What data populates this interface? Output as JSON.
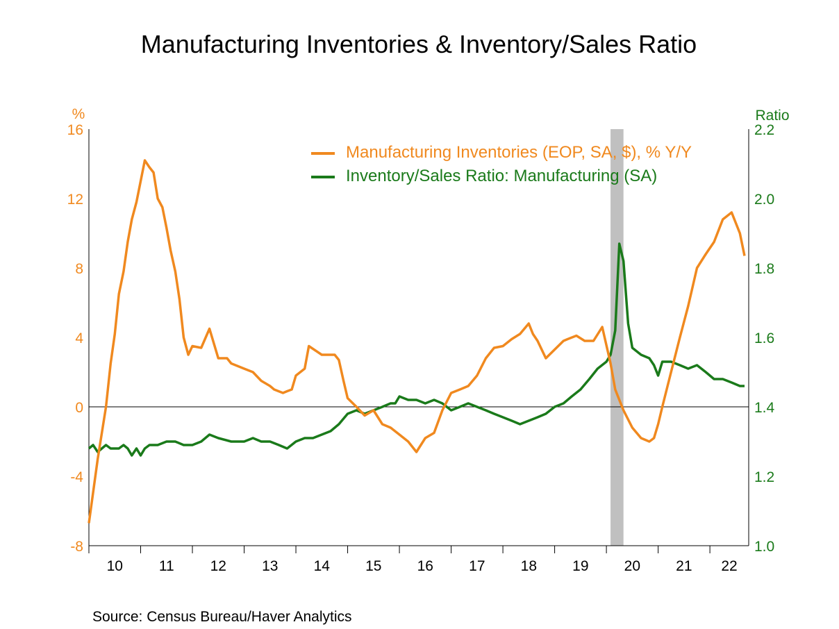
{
  "chart_data": {
    "type": "line",
    "title": "Manufacturing Inventories & Inventory/Sales Ratio",
    "source": "Source:  Census Bureau/Haver Analytics",
    "left_axis": {
      "unit_label": "%",
      "range": [
        -8,
        16
      ],
      "ticks": [
        "16",
        "12",
        "8",
        "4",
        "0",
        "-4",
        "-8"
      ],
      "tick_values": [
        16,
        12,
        8,
        4,
        0,
        -4,
        -8
      ]
    },
    "right_axis": {
      "unit_label": "Ratio",
      "range": [
        1.0,
        2.2
      ],
      "ticks": [
        "2.2",
        "2.0",
        "1.8",
        "1.6",
        "1.4",
        "1.2",
        "1.0"
      ],
      "tick_values": [
        2.2,
        2.0,
        1.8,
        1.6,
        1.4,
        1.2,
        1.0
      ]
    },
    "x_axis": {
      "range": [
        2010.0,
        2022.75
      ],
      "year_labels": [
        "10",
        "11",
        "12",
        "13",
        "14",
        "15",
        "16",
        "17",
        "18",
        "19",
        "20",
        "21",
        "22"
      ]
    },
    "recession_shading": {
      "start": 2020.08,
      "end": 2020.33
    },
    "colors": {
      "orange": "#f0891f",
      "green": "#1a7a1a",
      "recession": "#c0c0c0"
    },
    "series": [
      {
        "name": "Manufacturing Inventories (EOP, SA, $), % Y/Y",
        "axis": "left",
        "color": "#f0891f",
        "x": [
          2010.0,
          2010.17,
          2010.33,
          2010.42,
          2010.5,
          2010.58,
          2010.67,
          2010.75,
          2010.83,
          2010.92,
          2011.0,
          2011.08,
          2011.17,
          2011.25,
          2011.33,
          2011.42,
          2011.5,
          2011.58,
          2011.67,
          2011.75,
          2011.83,
          2011.92,
          2012.0,
          2012.17,
          2012.33,
          2012.5,
          2012.58,
          2012.67,
          2012.75,
          2013.0,
          2013.17,
          2013.33,
          2013.5,
          2013.58,
          2013.75,
          2013.83,
          2013.92,
          2014.0,
          2014.17,
          2014.25,
          2014.5,
          2014.75,
          2014.83,
          2014.92,
          2015.0,
          2015.17,
          2015.33,
          2015.5,
          2015.67,
          2015.83,
          2016.0,
          2016.17,
          2016.33,
          2016.5,
          2016.67,
          2016.83,
          2017.0,
          2017.17,
          2017.33,
          2017.5,
          2017.67,
          2017.83,
          2018.0,
          2018.17,
          2018.33,
          2018.5,
          2018.58,
          2018.67,
          2018.83,
          2019.0,
          2019.17,
          2019.25,
          2019.42,
          2019.58,
          2019.75,
          2019.92,
          2020.08,
          2020.17,
          2020.33,
          2020.5,
          2020.67,
          2020.83,
          2020.92,
          2021.0,
          2021.08,
          2021.25,
          2021.42,
          2021.58,
          2021.75,
          2021.92,
          2022.08,
          2022.25,
          2022.42,
          2022.58,
          2022.67
        ],
        "values": [
          -6.7,
          -3.0,
          0.0,
          2.5,
          4.2,
          6.5,
          7.8,
          9.5,
          10.8,
          11.8,
          13.0,
          14.2,
          13.8,
          13.5,
          12.0,
          11.5,
          10.3,
          9.0,
          7.8,
          6.2,
          4.0,
          3.0,
          3.5,
          3.4,
          4.5,
          2.8,
          2.8,
          2.8,
          2.5,
          2.2,
          2.0,
          1.5,
          1.2,
          1.0,
          0.8,
          0.9,
          1.0,
          1.8,
          2.2,
          3.5,
          3.0,
          3.0,
          2.7,
          1.5,
          0.5,
          0.0,
          -0.5,
          -0.2,
          -1.0,
          -1.2,
          -1.6,
          -2.0,
          -2.6,
          -1.8,
          -1.5,
          -0.2,
          0.8,
          1.0,
          1.2,
          1.8,
          2.8,
          3.4,
          3.5,
          3.9,
          4.2,
          4.8,
          4.2,
          3.8,
          2.8,
          3.3,
          3.8,
          3.9,
          4.1,
          3.8,
          3.8,
          4.6,
          2.5,
          1.0,
          -0.2,
          -1.2,
          -1.8,
          -2.0,
          -1.8,
          -1.0,
          0.0,
          2.0,
          4.0,
          5.8,
          8.0,
          8.8,
          9.5,
          10.8,
          11.2,
          10.0,
          8.7
        ]
      },
      {
        "name": "Inventory/Sales Ratio: Manufacturing (SA)",
        "axis": "right",
        "color": "#1a7a1a",
        "x": [
          2010.0,
          2010.08,
          2010.17,
          2010.25,
          2010.33,
          2010.42,
          2010.5,
          2010.58,
          2010.67,
          2010.75,
          2010.83,
          2010.92,
          2011.0,
          2011.08,
          2011.17,
          2011.25,
          2011.33,
          2011.5,
          2011.67,
          2011.83,
          2012.0,
          2012.17,
          2012.33,
          2012.5,
          2012.75,
          2013.0,
          2013.17,
          2013.33,
          2013.5,
          2013.67,
          2013.83,
          2014.0,
          2014.17,
          2014.33,
          2014.5,
          2014.67,
          2014.83,
          2015.0,
          2015.17,
          2015.33,
          2015.5,
          2015.67,
          2015.83,
          2015.92,
          2016.0,
          2016.17,
          2016.33,
          2016.5,
          2016.67,
          2016.83,
          2017.0,
          2017.17,
          2017.33,
          2017.5,
          2017.67,
          2017.83,
          2018.0,
          2018.17,
          2018.33,
          2018.5,
          2018.67,
          2018.83,
          2019.0,
          2019.17,
          2019.33,
          2019.5,
          2019.67,
          2019.83,
          2020.0,
          2020.08,
          2020.17,
          2020.25,
          2020.33,
          2020.42,
          2020.5,
          2020.67,
          2020.83,
          2020.92,
          2021.0,
          2021.08,
          2021.25,
          2021.42,
          2021.58,
          2021.75,
          2021.92,
          2022.08,
          2022.25,
          2022.42,
          2022.58,
          2022.67
        ],
        "values": [
          1.28,
          1.29,
          1.27,
          1.28,
          1.29,
          1.28,
          1.28,
          1.28,
          1.29,
          1.28,
          1.26,
          1.28,
          1.26,
          1.28,
          1.29,
          1.29,
          1.29,
          1.3,
          1.3,
          1.29,
          1.29,
          1.3,
          1.32,
          1.31,
          1.3,
          1.3,
          1.31,
          1.3,
          1.3,
          1.29,
          1.28,
          1.3,
          1.31,
          1.31,
          1.32,
          1.33,
          1.35,
          1.38,
          1.39,
          1.38,
          1.39,
          1.4,
          1.41,
          1.41,
          1.43,
          1.42,
          1.42,
          1.41,
          1.42,
          1.41,
          1.39,
          1.4,
          1.41,
          1.4,
          1.39,
          1.38,
          1.37,
          1.36,
          1.35,
          1.36,
          1.37,
          1.38,
          1.4,
          1.41,
          1.43,
          1.45,
          1.48,
          1.51,
          1.53,
          1.55,
          1.62,
          1.87,
          1.82,
          1.64,
          1.57,
          1.55,
          1.54,
          1.52,
          1.49,
          1.53,
          1.53,
          1.52,
          1.51,
          1.52,
          1.5,
          1.48,
          1.48,
          1.47,
          1.46,
          1.46
        ]
      }
    ]
  }
}
